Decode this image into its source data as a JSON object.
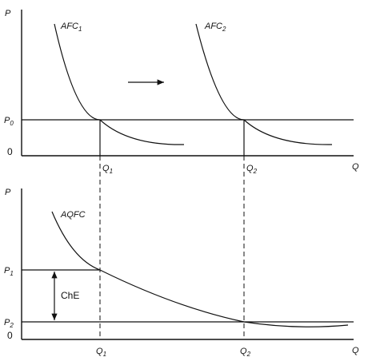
{
  "top_panel": {
    "y_axis": "P",
    "x_axis": "Q",
    "origin": "0",
    "price_level": {
      "main": "P",
      "sub": "0"
    },
    "curves": [
      {
        "main": "AFC",
        "sub": "1"
      },
      {
        "main": "AFC",
        "sub": "2"
      }
    ],
    "quantities": [
      {
        "main": "Q",
        "sub": "1"
      },
      {
        "main": "Q",
        "sub": "2"
      }
    ]
  },
  "bottom_panel": {
    "y_axis": "P",
    "x_axis": "Q",
    "origin": "0",
    "curve": "AQFC",
    "price_levels": [
      {
        "main": "P",
        "sub": "1"
      },
      {
        "main": "P",
        "sub": "2"
      }
    ],
    "difference_label": "ChE",
    "quantities": [
      {
        "main": "Q",
        "sub": "1"
      },
      {
        "main": "Q",
        "sub": "2"
      }
    ]
  }
}
